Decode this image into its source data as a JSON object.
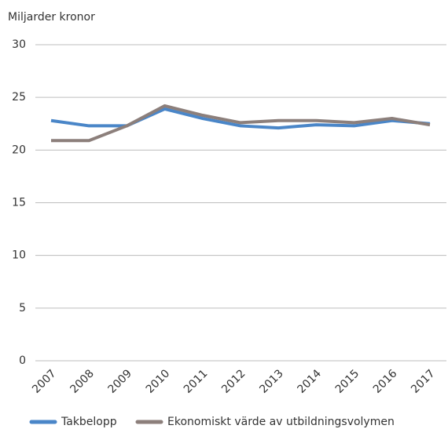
{
  "chart_data": {
    "type": "line",
    "y_label": "Miljarder kronor",
    "categories": [
      "2007",
      "2008",
      "2009",
      "2010",
      "2011",
      "2012",
      "2013",
      "2014",
      "2015",
      "2016",
      "2017"
    ],
    "series": [
      {
        "name": "Takbelopp",
        "color": "#4a86c8",
        "values": [
          22.8,
          22.3,
          22.3,
          23.9,
          23.0,
          22.3,
          22.1,
          22.4,
          22.3,
          22.8,
          22.5
        ]
      },
      {
        "name": "Ekonomiskt värde av utbildningsvolymen",
        "color": "#8c7f7b",
        "values": [
          20.9,
          20.9,
          22.3,
          24.2,
          23.3,
          22.6,
          22.8,
          22.8,
          22.6,
          23.0,
          22.4
        ]
      }
    ],
    "ylim": [
      0,
      30
    ],
    "yticks": [
      0,
      5,
      10,
      15,
      20,
      25,
      30
    ],
    "grid": true,
    "legend": "bottom"
  }
}
